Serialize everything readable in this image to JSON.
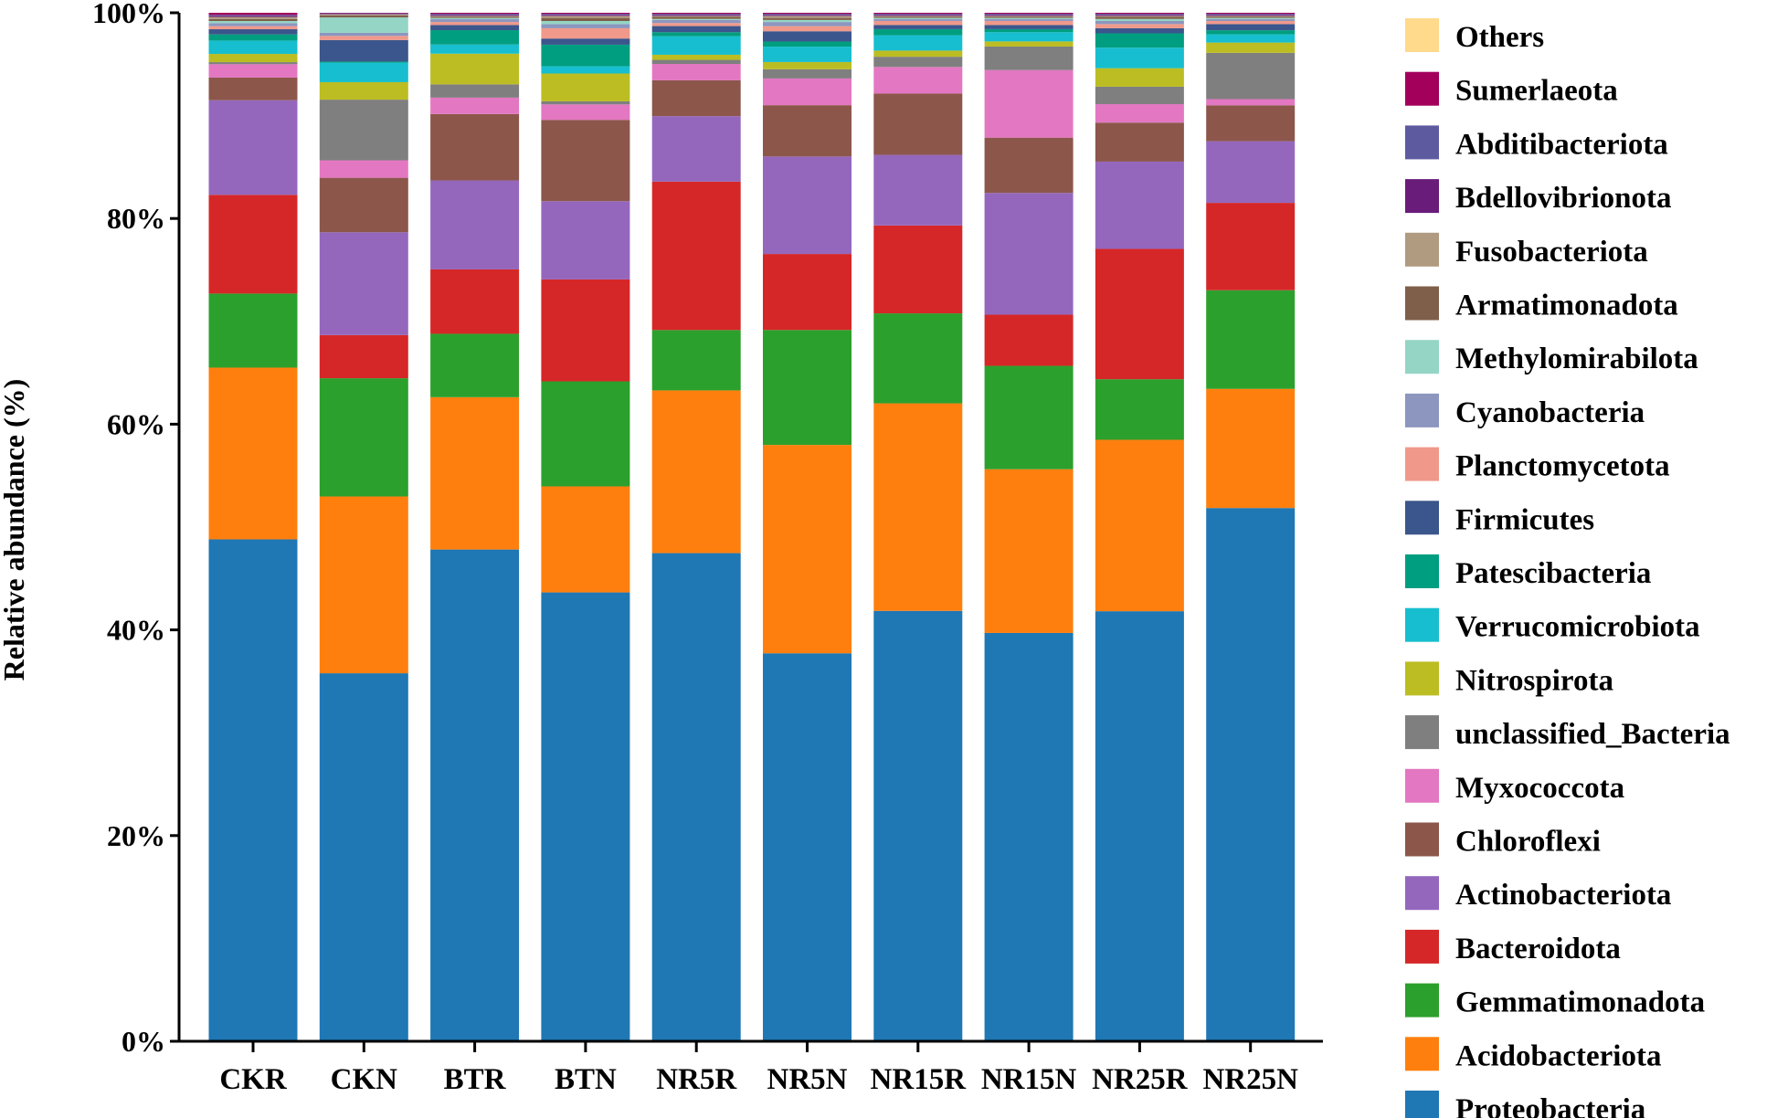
{
  "chart_data": {
    "type": "bar",
    "stacked": true,
    "title": "",
    "xlabel": "",
    "ylabel": "Relative abundance (%)",
    "ylim": [
      0,
      100
    ],
    "y_ticks": [
      "0%",
      "20%",
      "40%",
      "60%",
      "80%",
      "100%"
    ],
    "categories": [
      "CKR",
      "CKN",
      "BTR",
      "BTN",
      "NR5R",
      "NR5N",
      "NR15R",
      "NR15N",
      "NR25R",
      "NR25N"
    ],
    "legend_position": "right",
    "series": [
      {
        "name": "Proteobacteria",
        "color": "#1f77b4",
        "values": [
          48.8,
          35.8,
          48.1,
          43.6,
          47.7,
          37.8,
          42.1,
          39.9,
          41.9,
          51.9
        ]
      },
      {
        "name": "Acidobacteriota",
        "color": "#ff7f0e",
        "values": [
          16.7,
          17.2,
          14.9,
          10.3,
          15.9,
          20.3,
          20.3,
          16.0,
          16.7,
          11.6
        ]
      },
      {
        "name": "Gemmatimonadota",
        "color": "#2ca02c",
        "values": [
          7.2,
          11.5,
          6.2,
          10.2,
          5.9,
          11.2,
          8.8,
          10.1,
          5.9,
          9.6
        ]
      },
      {
        "name": "Bacteroidota",
        "color": "#d62728",
        "values": [
          9.6,
          4.2,
          6.3,
          9.9,
          14.5,
          7.4,
          8.6,
          5.0,
          12.7,
          8.5
        ]
      },
      {
        "name": "Actinobacteriota",
        "color": "#9467bd",
        "values": [
          9.2,
          10.0,
          8.7,
          7.6,
          6.4,
          9.5,
          6.9,
          11.9,
          8.5,
          6.0
        ]
      },
      {
        "name": "Chloroflexi",
        "color": "#8c564b",
        "values": [
          2.2,
          5.3,
          6.5,
          7.9,
          3.5,
          5.0,
          6.0,
          5.4,
          3.8,
          3.5
        ]
      },
      {
        "name": "Myxococcota",
        "color": "#e377c2",
        "values": [
          1.3,
          1.7,
          1.6,
          1.5,
          1.6,
          2.6,
          2.6,
          6.6,
          1.8,
          0.6
        ]
      },
      {
        "name": "unclassified_Bacteria",
        "color": "#7f7f7f",
        "values": [
          0.2,
          5.9,
          1.3,
          0.3,
          0.4,
          0.9,
          1.0,
          2.3,
          1.7,
          4.5
        ]
      },
      {
        "name": "Nitrospirota",
        "color": "#bcbd22",
        "values": [
          0.8,
          1.7,
          3.0,
          2.7,
          0.5,
          0.7,
          0.6,
          0.5,
          1.8,
          1.0
        ]
      },
      {
        "name": "Verrucomicrobiota",
        "color": "#17becf",
        "values": [
          1.3,
          1.9,
          0.9,
          0.7,
          1.8,
          1.5,
          1.5,
          0.9,
          2.0,
          0.8
        ]
      },
      {
        "name": "Patescibacteria",
        "color": "#009e80",
        "values": [
          0.6,
          0.1,
          1.4,
          2.1,
          0.4,
          0.5,
          0.6,
          0.3,
          1.4,
          0.4
        ]
      },
      {
        "name": "Firmicutes",
        "color": "#3b568c",
        "values": [
          0.5,
          2.1,
          0.5,
          0.6,
          0.6,
          1.0,
          0.4,
          0.4,
          0.5,
          0.6
        ]
      },
      {
        "name": "Planctomycetota",
        "color": "#f0998a",
        "values": [
          0.3,
          0.4,
          0.3,
          1.0,
          0.3,
          0.5,
          0.4,
          0.4,
          0.4,
          0.3
        ]
      },
      {
        "name": "Cyanobacteria",
        "color": "#8c96bf",
        "values": [
          0.3,
          0.3,
          0.3,
          0.4,
          0.3,
          0.4,
          0.2,
          0.2,
          0.3,
          0.2
        ]
      },
      {
        "name": "Methylomirabilota",
        "color": "#95d5c5",
        "values": [
          0.2,
          1.5,
          0.1,
          0.3,
          0.1,
          0.2,
          0.1,
          0.1,
          0.2,
          0.1
        ]
      },
      {
        "name": "Armatimonadota",
        "color": "#7f5f4a",
        "values": [
          0.2,
          0.2,
          0.1,
          0.3,
          0.2,
          0.2,
          0.1,
          0.1,
          0.2,
          0.1
        ]
      },
      {
        "name": "Fusobacteriota",
        "color": "#b09a80",
        "values": [
          0.2,
          0.1,
          0.1,
          0.2,
          0.1,
          0.2,
          0.1,
          0.1,
          0.1,
          0.1
        ]
      },
      {
        "name": "Bdellovibrionota",
        "color": "#6a1c7a",
        "values": [
          0.1,
          0.05,
          0.1,
          0.1,
          0.1,
          0.1,
          0.1,
          0.1,
          0.1,
          0.1
        ]
      },
      {
        "name": "Abditibacteriota",
        "color": "#5e5aa0",
        "values": [
          0.1,
          0.05,
          0.1,
          0.1,
          0.1,
          0.1,
          0.1,
          0.1,
          0.1,
          0.1
        ]
      },
      {
        "name": "Sumerlaeota",
        "color": "#a3005c",
        "values": [
          0.2,
          0.05,
          0.1,
          0.1,
          0.1,
          0.1,
          0.1,
          0.1,
          0.1,
          0.1
        ]
      },
      {
        "name": "Others",
        "color": "#ffd98c",
        "values": [
          0.0,
          0.0,
          0.0,
          0.0,
          0.0,
          0.0,
          0.0,
          0.0,
          0.0,
          0.0
        ]
      }
    ]
  }
}
